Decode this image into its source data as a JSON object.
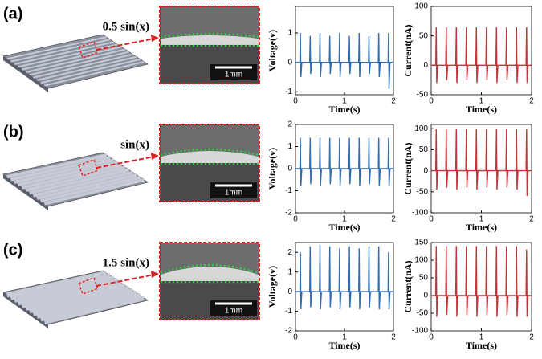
{
  "panels": [
    {
      "label": "(a)",
      "formula": "0.5 sin(x)",
      "scale_bar": "1mm"
    },
    {
      "label": "(b)",
      "formula": "sin(x)",
      "scale_bar": "1mm"
    },
    {
      "label": "(c)",
      "formula": "1.5 sin(x)",
      "scale_bar": "1mm"
    }
  ],
  "chart_data": [
    {
      "type": "line",
      "x_label": "Time(s)",
      "y_label": "Voltage(v)",
      "xlim": [
        0,
        2
      ],
      "xticks": [
        0,
        1,
        2
      ],
      "ylim": [
        -1.1,
        1.9
      ],
      "yticks": [
        -1,
        0,
        1
      ],
      "color": "#2f6db5",
      "x": [
        0,
        0.09,
        0.1,
        0.11,
        0.13,
        0.29,
        0.3,
        0.31,
        0.33,
        0.49,
        0.5,
        0.51,
        0.53,
        0.69,
        0.7,
        0.71,
        0.73,
        0.89,
        0.9,
        0.91,
        0.93,
        1.09,
        1.1,
        1.11,
        1.13,
        1.29,
        1.3,
        1.31,
        1.33,
        1.49,
        1.5,
        1.51,
        1.53,
        1.69,
        1.7,
        1.71,
        1.73,
        1.89,
        1.9,
        1.91,
        1.93,
        2
      ],
      "values": [
        0,
        0,
        1.0,
        -0.5,
        0,
        0,
        0.9,
        -0.4,
        0,
        0,
        1.0,
        -0.5,
        0,
        0,
        0.9,
        -0.4,
        0,
        0,
        1.0,
        -0.5,
        0,
        0,
        0.9,
        -0.4,
        0,
        0,
        1.0,
        -0.5,
        0,
        0,
        0.9,
        -0.4,
        0,
        0,
        1.0,
        -0.5,
        0,
        0,
        1.0,
        -0.9,
        0,
        0
      ]
    },
    {
      "type": "line",
      "x_label": "Time(s)",
      "y_label": "Current(nA)",
      "xlim": [
        0,
        2
      ],
      "xticks": [
        0,
        1,
        2
      ],
      "ylim": [
        -50,
        100
      ],
      "yticks": [
        -50,
        0,
        50,
        100
      ],
      "color": "#c0363a",
      "x": [
        0,
        0.09,
        0.1,
        0.11,
        0.13,
        0.29,
        0.3,
        0.31,
        0.33,
        0.49,
        0.5,
        0.51,
        0.53,
        0.69,
        0.7,
        0.71,
        0.73,
        0.89,
        0.9,
        0.91,
        0.93,
        1.09,
        1.1,
        1.11,
        1.13,
        1.29,
        1.3,
        1.31,
        1.33,
        1.49,
        1.5,
        1.51,
        1.53,
        1.69,
        1.7,
        1.71,
        1.73,
        1.89,
        1.9,
        1.91,
        1.93,
        2
      ],
      "values": [
        0,
        0,
        65,
        -30,
        0,
        0,
        65,
        -25,
        0,
        0,
        65,
        -30,
        0,
        0,
        65,
        -25,
        0,
        0,
        65,
        -30,
        0,
        0,
        65,
        -25,
        0,
        0,
        65,
        -30,
        0,
        0,
        65,
        -25,
        0,
        0,
        65,
        -30,
        0,
        0,
        65,
        -30,
        0,
        0
      ]
    },
    {
      "type": "line",
      "x_label": "Time(s)",
      "y_label": "Voltage(v)",
      "xlim": [
        0,
        2
      ],
      "xticks": [
        0,
        1,
        2
      ],
      "ylim": [
        -2,
        2
      ],
      "yticks": [
        -2,
        -1,
        0,
        1,
        2
      ],
      "color": "#2f6db5",
      "x": [
        0,
        0.09,
        0.1,
        0.11,
        0.13,
        0.29,
        0.3,
        0.31,
        0.33,
        0.49,
        0.5,
        0.51,
        0.53,
        0.69,
        0.7,
        0.71,
        0.73,
        0.89,
        0.9,
        0.91,
        0.93,
        1.09,
        1.1,
        1.11,
        1.13,
        1.29,
        1.3,
        1.31,
        1.33,
        1.49,
        1.5,
        1.51,
        1.53,
        1.69,
        1.7,
        1.71,
        1.73,
        1.89,
        1.9,
        1.91,
        1.93,
        2
      ],
      "values": [
        0,
        0,
        1.4,
        -0.8,
        0,
        0,
        1.4,
        -0.7,
        0,
        0,
        1.4,
        -0.8,
        0,
        0,
        1.4,
        -0.7,
        0,
        0,
        1.4,
        -0.8,
        0,
        0,
        1.4,
        -0.7,
        0,
        0,
        1.4,
        -0.8,
        0,
        0,
        1.4,
        -0.7,
        0,
        0,
        1.4,
        -0.8,
        0,
        0,
        1.4,
        -0.8,
        0,
        0
      ]
    },
    {
      "type": "line",
      "x_label": "Time(s)",
      "y_label": "Current(nA)",
      "xlim": [
        0,
        2
      ],
      "xticks": [
        0,
        1,
        2
      ],
      "ylim": [
        -100,
        110
      ],
      "yticks": [
        -100,
        -50,
        0,
        50,
        100
      ],
      "color": "#c0363a",
      "x": [
        0,
        0.09,
        0.1,
        0.11,
        0.13,
        0.29,
        0.3,
        0.31,
        0.33,
        0.49,
        0.5,
        0.51,
        0.53,
        0.69,
        0.7,
        0.71,
        0.73,
        0.89,
        0.9,
        0.91,
        0.93,
        1.09,
        1.1,
        1.11,
        1.13,
        1.29,
        1.3,
        1.31,
        1.33,
        1.49,
        1.5,
        1.51,
        1.53,
        1.69,
        1.7,
        1.71,
        1.73,
        1.89,
        1.9,
        1.91,
        1.93,
        2
      ],
      "values": [
        0,
        0,
        100,
        -45,
        0,
        0,
        100,
        -40,
        0,
        0,
        100,
        -45,
        0,
        0,
        100,
        -40,
        0,
        0,
        100,
        -45,
        0,
        0,
        100,
        -40,
        0,
        0,
        100,
        -45,
        0,
        0,
        100,
        -40,
        0,
        0,
        100,
        -45,
        0,
        0,
        100,
        -60,
        0,
        0
      ]
    },
    {
      "type": "line",
      "x_label": "Time(s)",
      "y_label": "Voltage(v)",
      "xlim": [
        0,
        2
      ],
      "xticks": [
        0,
        1,
        2
      ],
      "ylim": [
        -2,
        2.5
      ],
      "yticks": [
        -2,
        -1,
        0,
        1,
        2
      ],
      "color": "#2f6db5",
      "x": [
        0,
        0.09,
        0.1,
        0.11,
        0.13,
        0.29,
        0.3,
        0.31,
        0.33,
        0.49,
        0.5,
        0.51,
        0.53,
        0.69,
        0.7,
        0.71,
        0.73,
        0.89,
        0.9,
        0.91,
        0.93,
        1.09,
        1.1,
        1.11,
        1.13,
        1.29,
        1.3,
        1.31,
        1.33,
        1.49,
        1.5,
        1.51,
        1.53,
        1.69,
        1.7,
        1.71,
        1.73,
        1.89,
        1.9,
        1.91,
        1.93,
        2
      ],
      "values": [
        0,
        0,
        2.0,
        -0.9,
        0,
        0,
        2.3,
        -0.8,
        0,
        0,
        2.4,
        -0.9,
        0,
        0,
        2.3,
        -0.8,
        0,
        0,
        2.2,
        -0.9,
        0,
        0,
        2.3,
        -0.8,
        0,
        0,
        2.2,
        -0.9,
        0,
        0,
        2.3,
        -0.8,
        0,
        0,
        2.3,
        -0.9,
        0,
        0,
        2.0,
        -0.9,
        0,
        0
      ]
    },
    {
      "type": "line",
      "x_label": "Time(s)",
      "y_label": "Current(nA)",
      "xlim": [
        0,
        2
      ],
      "xticks": [
        0,
        1,
        2
      ],
      "ylim": [
        -100,
        150
      ],
      "yticks": [
        -100,
        -50,
        0,
        50,
        100,
        150
      ],
      "color": "#c0363a",
      "x": [
        0,
        0.09,
        0.1,
        0.11,
        0.13,
        0.29,
        0.3,
        0.31,
        0.33,
        0.49,
        0.5,
        0.51,
        0.53,
        0.69,
        0.7,
        0.71,
        0.73,
        0.89,
        0.9,
        0.91,
        0.93,
        1.09,
        1.1,
        1.11,
        1.13,
        1.29,
        1.3,
        1.31,
        1.33,
        1.49,
        1.5,
        1.51,
        1.53,
        1.69,
        1.7,
        1.71,
        1.73,
        1.89,
        1.9,
        1.91,
        1.93,
        2
      ],
      "values": [
        0,
        0,
        140,
        -60,
        0,
        0,
        140,
        -55,
        0,
        0,
        140,
        -60,
        0,
        0,
        140,
        -55,
        0,
        0,
        140,
        -60,
        0,
        0,
        140,
        -55,
        0,
        0,
        140,
        -60,
        0,
        0,
        140,
        -55,
        0,
        0,
        140,
        -60,
        0,
        0,
        130,
        -60,
        0,
        0
      ]
    }
  ]
}
